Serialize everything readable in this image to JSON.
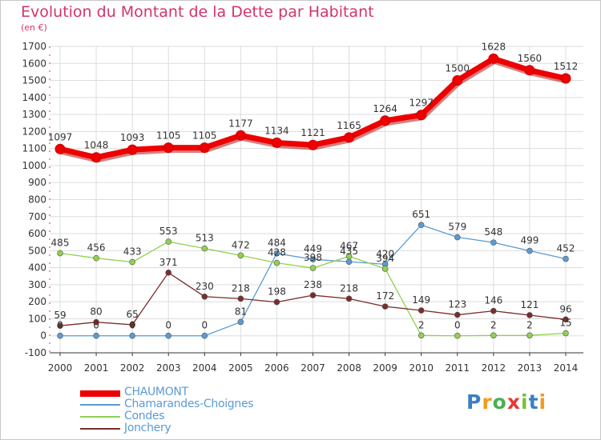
{
  "title": "Evolution du Montant de la Dette par Habitant",
  "unit_label": "(en €)",
  "brand": "Proxiti",
  "chart_data": {
    "type": "line",
    "x": [
      "2000",
      "2001",
      "2002",
      "2003",
      "2004",
      "2005",
      "2006",
      "2007",
      "2008",
      "2009",
      "2010",
      "2011",
      "2012",
      "2013",
      "2014"
    ],
    "ylim": [
      -100,
      1700
    ],
    "yticks": [
      -100,
      0,
      100,
      200,
      300,
      400,
      500,
      600,
      700,
      800,
      900,
      1000,
      1100,
      1200,
      1300,
      1400,
      1500,
      1600,
      1700
    ],
    "grid": true,
    "legend_position": "bottom-left",
    "series": [
      {
        "name": "CHAUMONT",
        "color": "#ee0000",
        "emphasis": true,
        "values": [
          1097,
          1048,
          1093,
          1105,
          1105,
          1177,
          1134,
          1121,
          1165,
          1264,
          1297,
          1500,
          1628,
          1560,
          1512
        ],
        "labels": [
          "1097",
          "1048",
          "1093",
          "1105",
          "1105",
          "1177",
          "1134",
          "1121",
          "1165",
          "1264",
          "1297",
          "1500",
          "1628",
          "1560",
          "1512"
        ]
      },
      {
        "name": "Chamarandes-Choignes",
        "color": "#5b9bd5",
        "values": [
          0,
          0,
          0,
          0,
          0,
          81,
          484,
          449,
          435,
          420,
          651,
          579,
          548,
          499,
          452
        ],
        "labels": [
          "0",
          "0",
          "0",
          "0",
          "0",
          "81",
          "484",
          "449",
          "435",
          "420",
          "651",
          "579",
          "548",
          "499",
          "452"
        ]
      },
      {
        "name": "Condes",
        "color": "#92d050",
        "values": [
          485,
          456,
          433,
          553,
          513,
          472,
          428,
          398,
          467,
          394,
          2,
          0,
          2,
          2,
          15
        ],
        "labels": [
          "485",
          "456",
          "433",
          "553",
          "513",
          "472",
          "428",
          "398",
          "467",
          "394",
          "2",
          "0",
          "2",
          "2",
          "15"
        ]
      },
      {
        "name": "Jonchery",
        "color": "#7b2c2c",
        "values": [
          59,
          80,
          65,
          371,
          230,
          218,
          198,
          238,
          218,
          172,
          149,
          123,
          146,
          121,
          96
        ],
        "labels": [
          "59",
          "80",
          "65",
          "371",
          "230",
          "218",
          "198",
          "238",
          "218",
          "172",
          "149",
          "123",
          "146",
          "121",
          "96"
        ]
      }
    ]
  }
}
